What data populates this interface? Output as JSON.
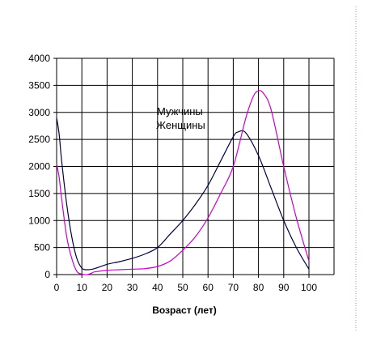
{
  "chart_data": {
    "type": "line",
    "title": "",
    "xlabel": "Возраст (лет)",
    "ylabel": "",
    "xlim": [
      0,
      100
    ],
    "ylim": [
      0,
      4000
    ],
    "x_ticks": [
      "0",
      "10",
      "20",
      "30",
      "40",
      "50",
      "60",
      "70",
      "80",
      "90",
      "100"
    ],
    "y_ticks": [
      "0",
      "500",
      "1000",
      "1500",
      "2000",
      "2500",
      "3000",
      "3500",
      "4000"
    ],
    "grid": true,
    "legend_placement": "center",
    "series": [
      {
        "name": "Мужчины",
        "color": "#000040",
        "x": [
          0,
          1,
          2,
          4,
          6,
          8,
          10,
          12,
          15,
          20,
          25,
          30,
          35,
          40,
          45,
          50,
          55,
          60,
          65,
          70,
          72,
          75,
          80,
          85,
          90,
          95,
          100
        ],
        "y": [
          2900,
          2600,
          2100,
          1300,
          700,
          300,
          120,
          90,
          110,
          190,
          240,
          300,
          380,
          500,
          750,
          1000,
          1300,
          1650,
          2100,
          2550,
          2640,
          2620,
          2200,
          1600,
          1000,
          500,
          100
        ]
      },
      {
        "name": "Женщины",
        "color": "#cc00cc",
        "x": [
          0,
          1,
          2,
          4,
          6,
          8,
          10,
          12,
          14,
          15,
          20,
          25,
          30,
          35,
          40,
          45,
          50,
          55,
          60,
          65,
          70,
          75,
          78,
          80,
          82,
          85,
          90,
          95,
          100
        ],
        "y": [
          2050,
          1800,
          1400,
          700,
          300,
          60,
          10,
          0,
          30,
          50,
          80,
          90,
          100,
          110,
          150,
          250,
          450,
          700,
          1050,
          1500,
          2000,
          2900,
          3300,
          3400,
          3350,
          3050,
          2000,
          1050,
          250
        ]
      }
    ],
    "legend": [
      "Мужчины",
      "Женщины"
    ]
  }
}
